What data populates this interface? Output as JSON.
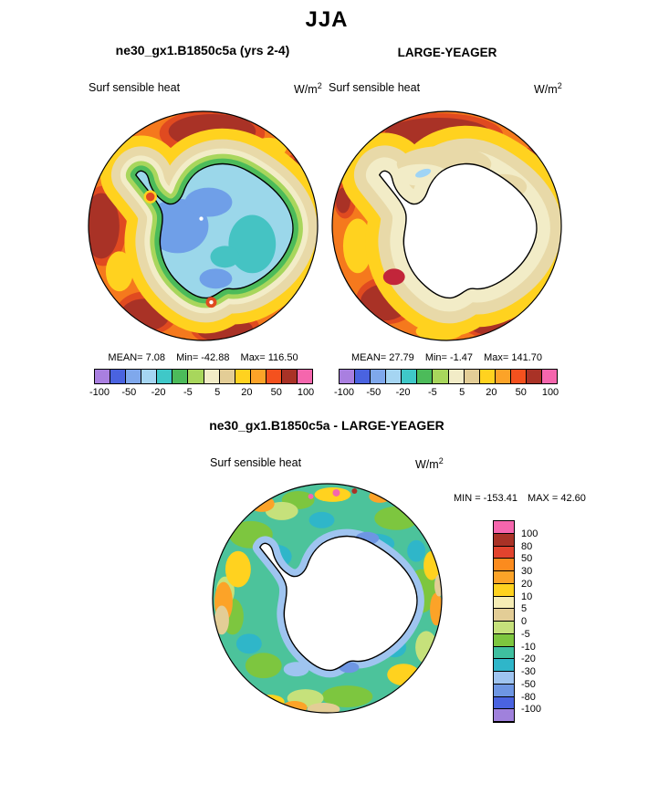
{
  "figure": {
    "title": "JJA"
  },
  "panels": {
    "model": {
      "title": "ne30_gx1.B1850c5a (yrs 2-4)",
      "field": "Surf sensible heat",
      "units_base": "W/m",
      "units_exp": "2",
      "stats": {
        "mean_label": "MEAN=",
        "mean": "7.08",
        "min_label": "Min=",
        "min": "-42.88",
        "max_label": "Max=",
        "max": "116.50"
      },
      "ticks": [
        "-100",
        "-50",
        "-20",
        "-5",
        "5",
        "20",
        "50",
        "100"
      ]
    },
    "obs": {
      "title": "LARGE-YEAGER",
      "field": "Surf sensible heat",
      "units_base": "W/m",
      "units_exp": "2",
      "stats": {
        "mean_label": "MEAN=",
        "mean": "27.79",
        "min_label": "Min=",
        "min": "-1.47",
        "max_label": "Max=",
        "max": "141.70"
      },
      "ticks": [
        "-100",
        "-50",
        "-20",
        "-5",
        "5",
        "20",
        "50",
        "100"
      ]
    },
    "diff": {
      "title": "ne30_gx1.B1850c5a - LARGE-YEAGER",
      "field": "Surf sensible heat",
      "units_base": "W/m",
      "units_exp": "2",
      "stats": {
        "min_label": "MIN =",
        "min": "-153.41",
        "max_label": "MAX =",
        "max": "42.60"
      },
      "ticks": [
        "100",
        "80",
        "50",
        "30",
        "20",
        "10",
        "5",
        "0",
        "-5",
        "-10",
        "-20",
        "-30",
        "-50",
        "-80",
        "-100"
      ]
    }
  },
  "palette": {
    "contour_14": [
      "#A97FE0",
      "#4A63E0",
      "#7FA8EC",
      "#A5D5F2",
      "#3FC8C8",
      "#4CBB5A",
      "#A8D65C",
      "#F2ECC7",
      "#E3CD96",
      "#FFD21F",
      "#FCA328",
      "#F4511E",
      "#A93226",
      "#F566AD"
    ],
    "diff_16": [
      "#F566AD",
      "#A93226",
      "#E2432E",
      "#FB8B1E",
      "#FCA328",
      "#FFD21F",
      "#F6EDB5",
      "#E3CD96",
      "#C6E17B",
      "#7DC63F",
      "#3FBF9F",
      "#2FB6C9",
      "#9FC4F0",
      "#6E96E3",
      "#4A63E0",
      "#A081DC"
    ]
  },
  "map_colors": {
    "ocean": "#F5791D",
    "red": "#E04A20",
    "dark_red": "#A93226",
    "yellow": "#FFD21F",
    "tan": "#E8D9A8",
    "cream": "#F2ECC7",
    "light_green": "#A8D65C",
    "green": "#4CBB5A",
    "pale_blue": "#9FD4F5",
    "ice_model": "#9BD7EA",
    "ice_blue": "#6F9FE8",
    "ice_teal": "#45C3C3",
    "continent_white": "#FFFFFF",
    "crimson": "#C2253A",
    "diff_base": "#4CC39B",
    "diff_green": "#7DC63F",
    "diff_ygreen": "#C6E17B",
    "diff_yellow": "#FFD21F",
    "diff_orange": "#FCA328",
    "diff_cyan": "#2FB6C9",
    "diff_tan": "#E3CD96",
    "diff_lblue": "#9FC4F0",
    "diff_blue": "#6E96E3",
    "diff_pink": "#F566AD",
    "coast": "#000000"
  },
  "chart_data": [
    {
      "type": "heatmap",
      "panel": "model",
      "season": "JJA",
      "title": "ne30_gx1.B1850c5a (yrs 2-4)",
      "field": "Surf sensible heat",
      "units": "W/m2",
      "mean": 7.08,
      "min": -42.88,
      "max": 116.5,
      "contour_levels": [
        -100,
        -50,
        -20,
        -5,
        5,
        20,
        50,
        100
      ],
      "palette_ref": "contour_14",
      "legend_position": "below"
    },
    {
      "type": "heatmap",
      "panel": "obs",
      "season": "JJA",
      "title": "LARGE-YEAGER",
      "field": "Surf sensible heat",
      "units": "W/m2",
      "mean": 27.79,
      "min": -1.47,
      "max": 141.7,
      "contour_levels": [
        -100,
        -50,
        -20,
        -5,
        5,
        20,
        50,
        100
      ],
      "palette_ref": "contour_14",
      "legend_position": "below"
    },
    {
      "type": "heatmap",
      "panel": "difference",
      "season": "JJA",
      "title": "ne30_gx1.B1850c5a - LARGE-YEAGER",
      "field": "Surf sensible heat",
      "units": "W/m2",
      "min": -153.41,
      "max": 42.6,
      "contour_levels": [
        -100,
        -80,
        -50,
        -30,
        -20,
        -10,
        -5,
        0,
        5,
        10,
        20,
        30,
        50,
        80,
        100
      ],
      "palette_ref": "diff_16",
      "legend_position": "right"
    }
  ]
}
